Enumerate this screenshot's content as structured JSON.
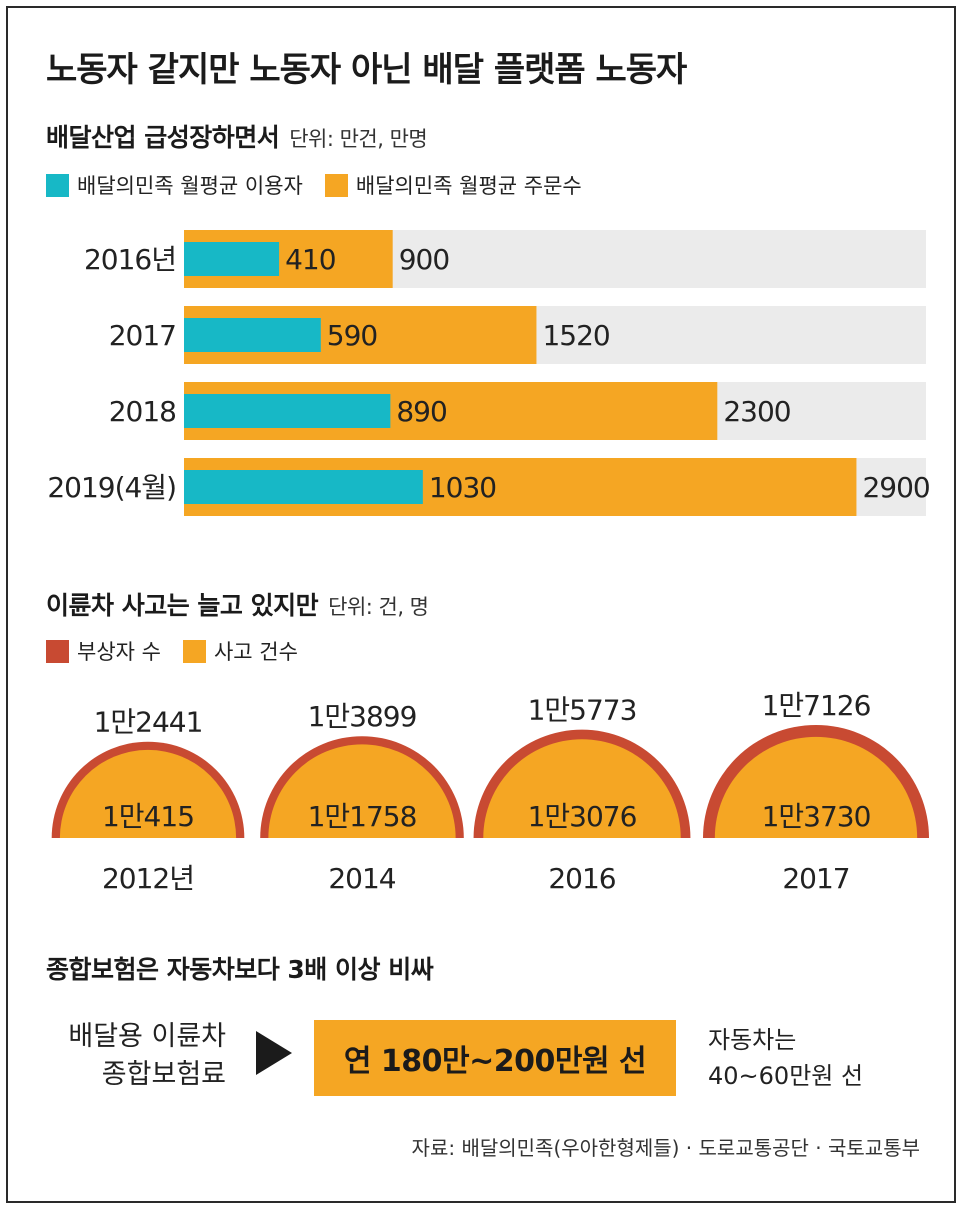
{
  "title": "노동자 같지만 노동자 아닌 배달 플랫폼 노동자",
  "colors": {
    "teal": "#17b8c6",
    "orange": "#f5a623",
    "red": "#c84a32",
    "track": "#ebebeb"
  },
  "section1": {
    "heading": "배달산업 급성장하면서",
    "unit": "단위: 만건, 만명",
    "legend": [
      "배달의민족 월평균 이용자",
      "배달의민족 월평균 주문수"
    ]
  },
  "section2": {
    "heading": "이륜차 사고는 늘고 있지만",
    "unit": "단위: 건, 명",
    "legend": [
      "부상자 수",
      "사고 건수"
    ]
  },
  "section3": {
    "heading": "종합보험은 자동차보다 3배 이상 비싸",
    "label_line1": "배달용 이륜차",
    "label_line2": "종합보험료",
    "box_text": "연 180만~200만원 선",
    "note_line1": "자동차는",
    "note_line2": "40~60만원 선"
  },
  "source": "자료: 배달의민족(우아한형제들) · 도로교통공단 · 국토교통부",
  "chart_data": [
    {
      "type": "bar",
      "orientation": "horizontal",
      "categories": [
        "2016년",
        "2017",
        "2018",
        "2019(4월)"
      ],
      "xlim": [
        0,
        3200
      ],
      "series": [
        {
          "name": "배달의민족 월평균 이용자",
          "values": [
            410,
            590,
            890,
            1030
          ],
          "labels": [
            "410",
            "590",
            "890",
            "1030"
          ]
        },
        {
          "name": "배달의민족 월평균 주문수",
          "values": [
            900,
            1520,
            2300,
            2900
          ],
          "labels": [
            "900",
            "1520",
            "2300",
            "2900"
          ]
        }
      ]
    },
    {
      "type": "area",
      "shape": "nested semicircles",
      "categories": [
        "2012년",
        "2014",
        "2016",
        "2017"
      ],
      "series": [
        {
          "name": "부상자 수",
          "values": [
            12441,
            13899,
            15773,
            17126
          ],
          "labels": [
            "1만2441",
            "1만3899",
            "1만5773",
            "1만7126"
          ]
        },
        {
          "name": "사고 건수",
          "values": [
            10415,
            11758,
            13076,
            13730
          ],
          "labels": [
            "1만415",
            "1만1758",
            "1만3076",
            "1만3730"
          ]
        }
      ]
    }
  ]
}
